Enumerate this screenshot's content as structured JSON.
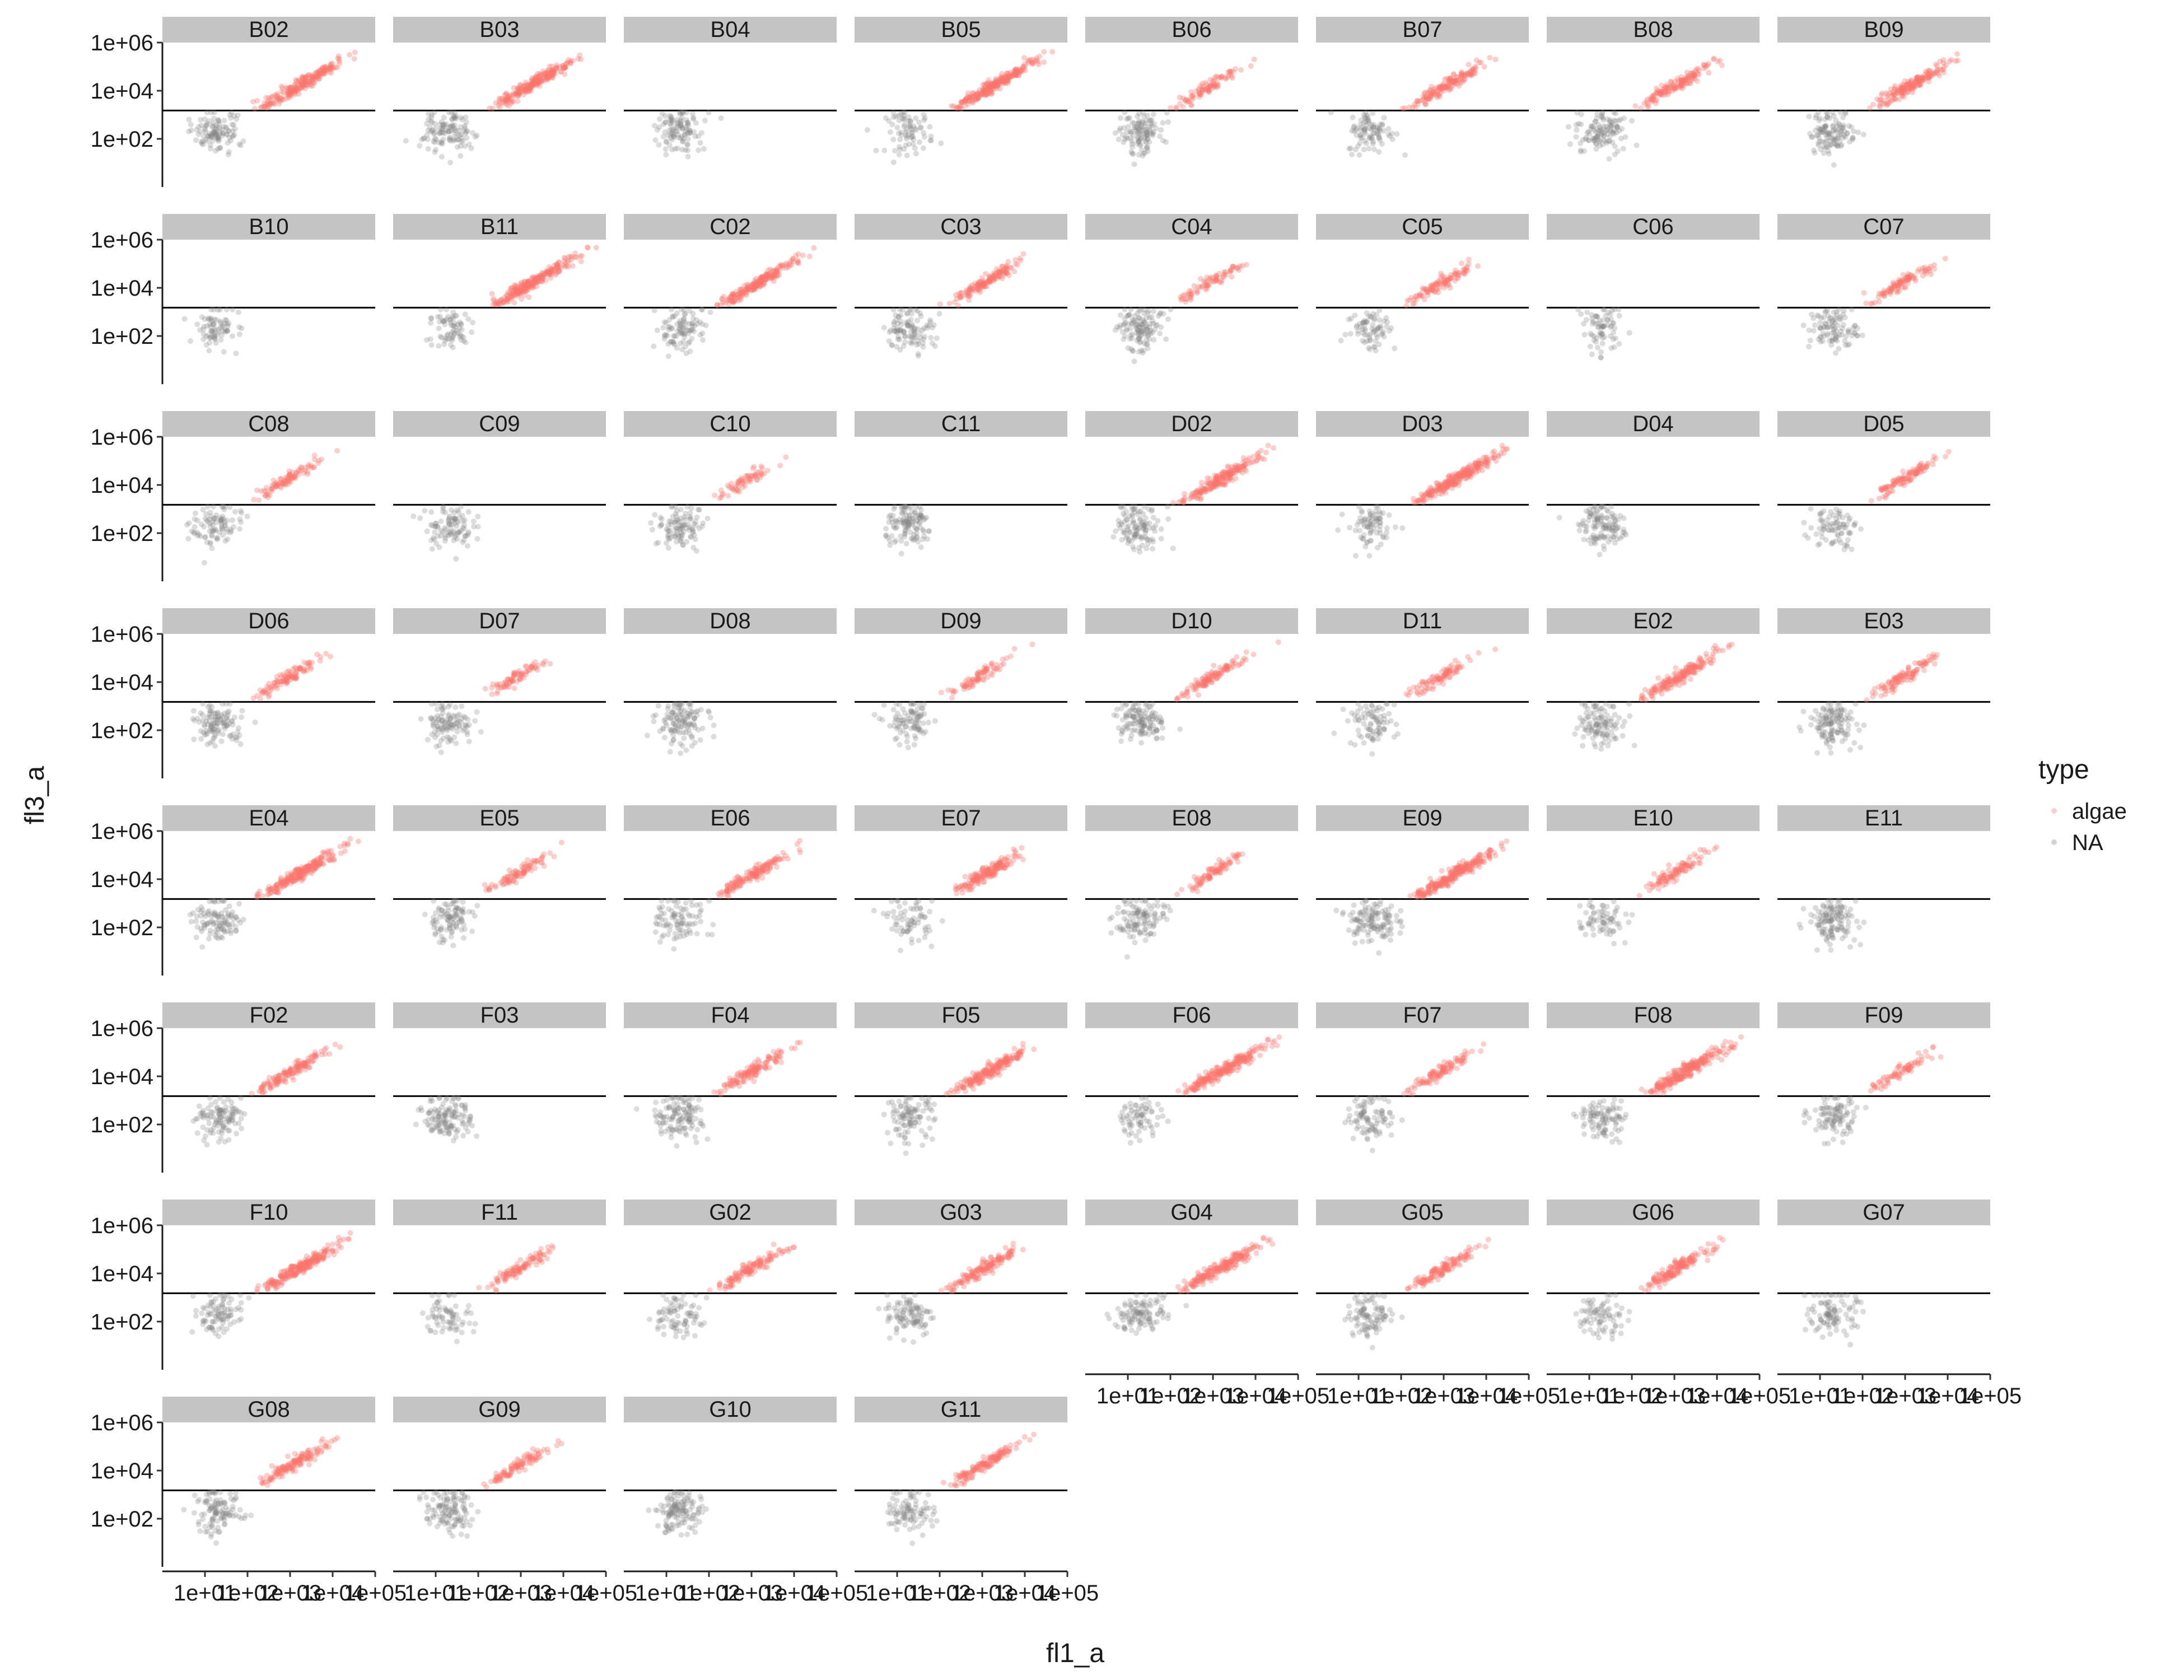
{
  "chart_data": {
    "type": "scatter",
    "facet_by": "well",
    "facets": [
      "B02",
      "B03",
      "B04",
      "B05",
      "B06",
      "B07",
      "B08",
      "B09",
      "B10",
      "B11",
      "C02",
      "C03",
      "C04",
      "C05",
      "C06",
      "C07",
      "C08",
      "C09",
      "C10",
      "C11",
      "D02",
      "D03",
      "D04",
      "D05",
      "D06",
      "D07",
      "D08",
      "D09",
      "D10",
      "D11",
      "E02",
      "E03",
      "E04",
      "E05",
      "E06",
      "E07",
      "E08",
      "E09",
      "E10",
      "E11",
      "F02",
      "F03",
      "F04",
      "F05",
      "F06",
      "F07",
      "F08",
      "F09",
      "F10",
      "F11",
      "G02",
      "G03",
      "G04",
      "G05",
      "G06",
      "G07",
      "G08",
      "G09",
      "G10",
      "G11"
    ],
    "facet_columns": 8,
    "xlabel": "fl1_a",
    "ylabel": "fl3_a",
    "xscale": "log10",
    "yscale": "log10",
    "xlim": [
      1,
      100000
    ],
    "ylim": [
      1,
      1000000
    ],
    "x_ticks": [
      10,
      100,
      1000,
      10000,
      100000
    ],
    "x_tick_labels": [
      "1e+01",
      "1e+02",
      "1e+03",
      "1e+04",
      "1e+05"
    ],
    "y_ticks": [
      100,
      10000,
      1000000
    ],
    "y_tick_labels": [
      "1e+02",
      "1e+04",
      "1e+06"
    ],
    "threshold_line": {
      "axis": "y",
      "value": 1500
    },
    "legend": {
      "title": "type",
      "position": "right",
      "entries": [
        {
          "name": "algae",
          "color": "#F8766D"
        },
        {
          "name": "NA",
          "color": "#808080"
        }
      ]
    },
    "series": [
      {
        "name": "algae",
        "color": "#F8766D",
        "opacity": 0.25,
        "description": "high fl3_a population above threshold, fl1_a ~5e+02 to 5e+04, fl3_a ~3e+03 to 2e+05"
      },
      {
        "name": "NA",
        "color": "#808080",
        "opacity": 0.25,
        "description": "background events below threshold, fl1_a ~5 to 1e+02, fl3_a ~10 to 1e+03"
      }
    ],
    "algae_density_by_facet": {
      "B02": 0.9,
      "B03": 0.9,
      "B04": 0.0,
      "B05": 1.0,
      "B06": 0.35,
      "B07": 0.6,
      "B08": 0.55,
      "B09": 0.7,
      "B10": 0.0,
      "B11": 1.0,
      "C02": 0.8,
      "C03": 0.55,
      "C04": 0.3,
      "C05": 0.4,
      "C06": 0.0,
      "C07": 0.4,
      "C08": 0.35,
      "C09": 0.0,
      "C10": 0.25,
      "C11": 0.0,
      "D02": 0.8,
      "D03": 1.0,
      "D04": 0.0,
      "D05": 0.4,
      "D06": 0.4,
      "D07": 0.3,
      "D08": 0.0,
      "D09": 0.3,
      "D10": 0.45,
      "D11": 0.35,
      "E02": 0.7,
      "E03": 0.4,
      "E04": 0.9,
      "E05": 0.35,
      "E06": 0.6,
      "E07": 0.65,
      "E08": 0.35,
      "E09": 1.0,
      "E10": 0.4,
      "E11": 0.0,
      "F02": 0.55,
      "F03": 0.0,
      "F04": 0.5,
      "F05": 0.8,
      "F06": 0.9,
      "F07": 0.4,
      "F08": 1.0,
      "F09": 0.3,
      "F10": 0.9,
      "F11": 0.4,
      "G02": 0.5,
      "G03": 0.55,
      "G04": 0.8,
      "G05": 0.5,
      "G06": 0.6,
      "G07": 0.0,
      "G08": 0.55,
      "G09": 0.4,
      "G10": 0.0,
      "G11": 0.55
    }
  }
}
